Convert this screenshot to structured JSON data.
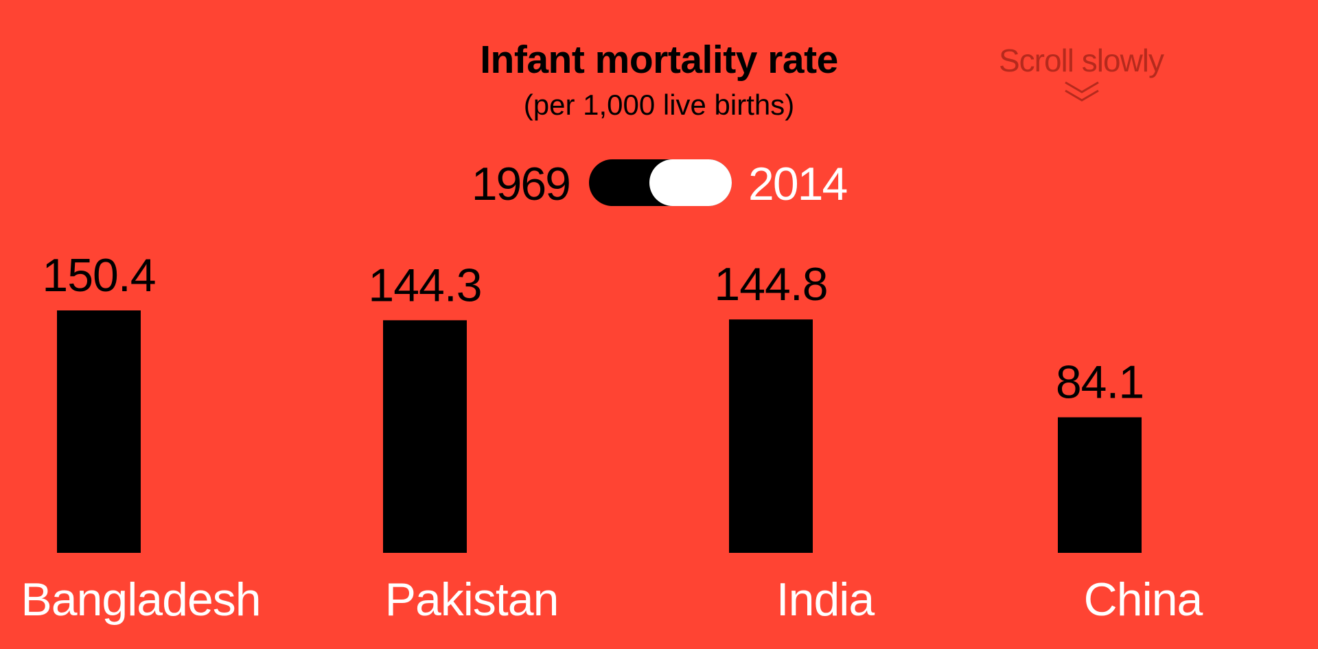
{
  "header": {
    "title": "Infant mortality rate",
    "subtitle": "(per 1,000 live births)"
  },
  "scroll_hint": {
    "label": "Scroll slowly",
    "icon": "double-chevron-down-icon"
  },
  "year_toggle": {
    "left_label": "1969",
    "right_label": "2014",
    "selected": "2014"
  },
  "colors": {
    "background": "#ff4433",
    "bars": "#000000",
    "value_labels": "#000000",
    "category_labels": "#ffffff",
    "active_year": "#ffffff",
    "inactive_year": "#000000"
  },
  "chart_data": {
    "type": "bar",
    "title": "Infant mortality rate",
    "subtitle": "(per 1,000 live births)",
    "categories": [
      "Bangladesh",
      "Pakistan",
      "India",
      "China"
    ],
    "values": [
      150.4,
      144.3,
      144.8,
      84.1
    ],
    "value_labels": [
      "150.4",
      "144.3",
      "144.8",
      "84.1"
    ],
    "xlabel": "",
    "ylabel": "",
    "ylim": [
      0,
      150.4
    ],
    "grid": false,
    "legend": "none"
  }
}
